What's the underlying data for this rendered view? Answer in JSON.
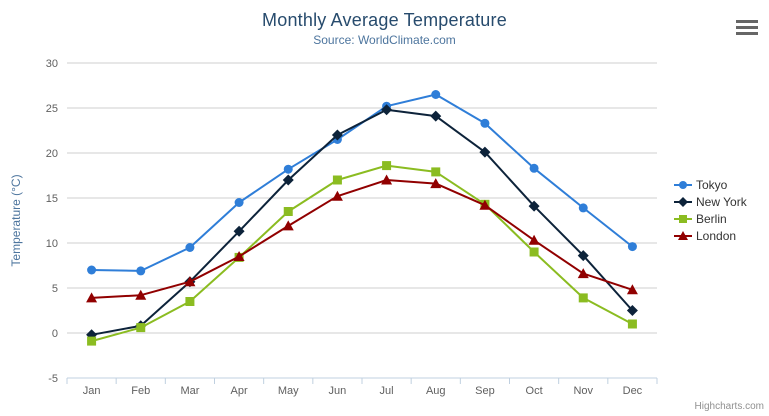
{
  "header": {
    "title": "Monthly Average Temperature",
    "subtitle": "Source: WorldClimate.com"
  },
  "credits_label": "Highcharts.com",
  "icons": {
    "context_menu": "hamburger-icon"
  },
  "palette": {
    "title_color": "#274b6d",
    "subtitle_color": "#4d759e",
    "axis_label_color": "#606060",
    "axis_line_color": "#C0D0E0",
    "grid_color": "#cfcfcf",
    "legend_text_color": "#333333",
    "credits_color": "#909090"
  },
  "chart_data": {
    "type": "line",
    "title": "Monthly Average Temperature",
    "subtitle": "Source: WorldClimate.com",
    "xlabel": "",
    "ylabel": "Temperature (°C)",
    "ylim": [
      -5,
      30
    ],
    "ytick_step": 5,
    "grid": true,
    "legend_position": "right",
    "categories": [
      "Jan",
      "Feb",
      "Mar",
      "Apr",
      "May",
      "Jun",
      "Jul",
      "Aug",
      "Sep",
      "Oct",
      "Nov",
      "Dec"
    ],
    "series": [
      {
        "name": "Tokyo",
        "color": "#2f7ed8",
        "marker": "circle",
        "values": [
          7.0,
          6.9,
          9.5,
          14.5,
          18.2,
          21.5,
          25.2,
          26.5,
          23.3,
          18.3,
          13.9,
          9.6
        ]
      },
      {
        "name": "New York",
        "color": "#0d233a",
        "marker": "diamond",
        "values": [
          -0.2,
          0.8,
          5.7,
          11.3,
          17.0,
          22.0,
          24.8,
          24.1,
          20.1,
          14.1,
          8.6,
          2.5
        ]
      },
      {
        "name": "Berlin",
        "color": "#8bbc21",
        "marker": "square",
        "values": [
          -0.9,
          0.6,
          3.5,
          8.4,
          13.5,
          17.0,
          18.6,
          17.9,
          14.3,
          9.0,
          3.9,
          1.0
        ]
      },
      {
        "name": "London",
        "color": "#910000",
        "marker": "triangle",
        "values": [
          3.9,
          4.2,
          5.7,
          8.5,
          11.9,
          15.2,
          17.0,
          16.6,
          14.2,
          10.3,
          6.6,
          4.8
        ]
      }
    ]
  }
}
